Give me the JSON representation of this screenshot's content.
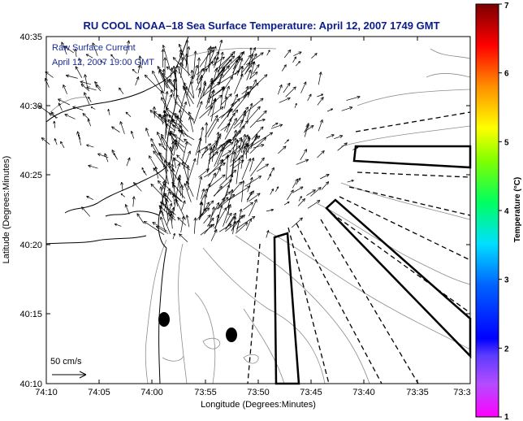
{
  "title": "RU COOL  NOAA–18  Sea Surface Temperature:  April 12, 2007 1749 GMT",
  "legend": {
    "line1": "Raw Surface Current",
    "line2": "April 12, 2007 19:00 GMT",
    "scale_label": "50 cm/s"
  },
  "xlabel": "Longitude (Degrees:Minutes)",
  "ylabel": "Latitude (Degrees:Minutes)",
  "x_ticks": [
    "74:10",
    "74:05",
    "74:00",
    "73:55",
    "73:50",
    "73:45",
    "73:40",
    "73:35",
    "73:3"
  ],
  "y_ticks": [
    "40:35",
    "40:30",
    "40:25",
    "40:20",
    "40:15",
    "40:10"
  ],
  "colorbar": {
    "label": "Temperature (°C)",
    "ticks": [
      "1",
      "2",
      "3",
      "4",
      "5",
      "6",
      "7"
    ]
  },
  "colors": {
    "title": "#0a1c8c",
    "coast": "#000000",
    "contour": "#888888"
  }
}
